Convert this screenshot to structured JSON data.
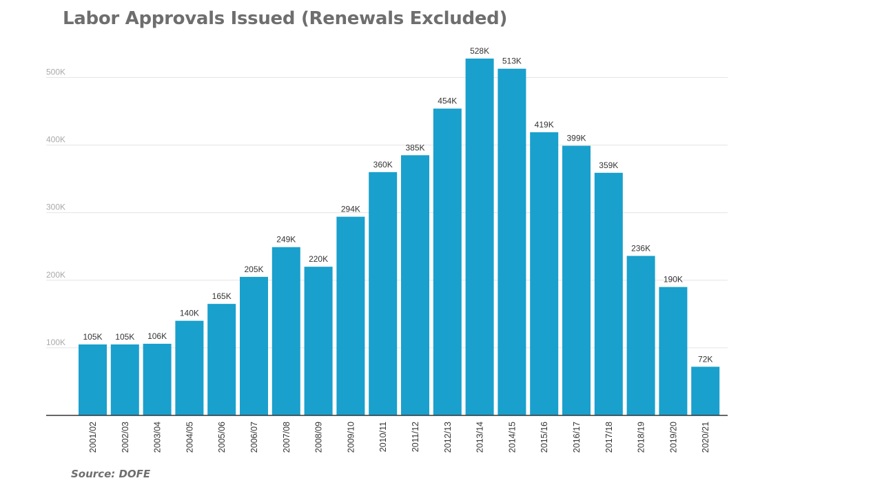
{
  "chart_data": {
    "type": "bar",
    "title": "Labor Approvals Issued (Renewals Excluded)",
    "source": "Source: DOFE",
    "xlabel": "",
    "ylabel": "",
    "ylim": [
      0,
      540000
    ],
    "yticks": [
      100000,
      200000,
      300000,
      400000,
      500000
    ],
    "ytick_labels": [
      "100K",
      "200K",
      "300K",
      "400K",
      "500K"
    ],
    "grid": true,
    "legend": "none",
    "bar_color": "#1aa0cc",
    "categories": [
      "2001/02",
      "2002/03",
      "2003/04",
      "2004/05",
      "2005/06",
      "2006/07",
      "2007/08",
      "2008/09",
      "2009/10",
      "2010/11",
      "2011/12",
      "2012/13",
      "2013/14",
      "2014/15",
      "2015/16",
      "2016/17",
      "2017/18",
      "2018/19",
      "2019/20",
      "2020/21"
    ],
    "values": [
      105000,
      105000,
      106000,
      140000,
      165000,
      205000,
      249000,
      220000,
      294000,
      360000,
      385000,
      454000,
      528000,
      513000,
      419000,
      399000,
      359000,
      236000,
      190000,
      72000
    ],
    "data_labels": [
      "105K",
      "105K",
      "106K",
      "140K",
      "165K",
      "205K",
      "249K",
      "220K",
      "294K",
      "360K",
      "385K",
      "454K",
      "528K",
      "513K",
      "419K",
      "399K",
      "359K",
      "236K",
      "190K",
      "72K"
    ]
  }
}
